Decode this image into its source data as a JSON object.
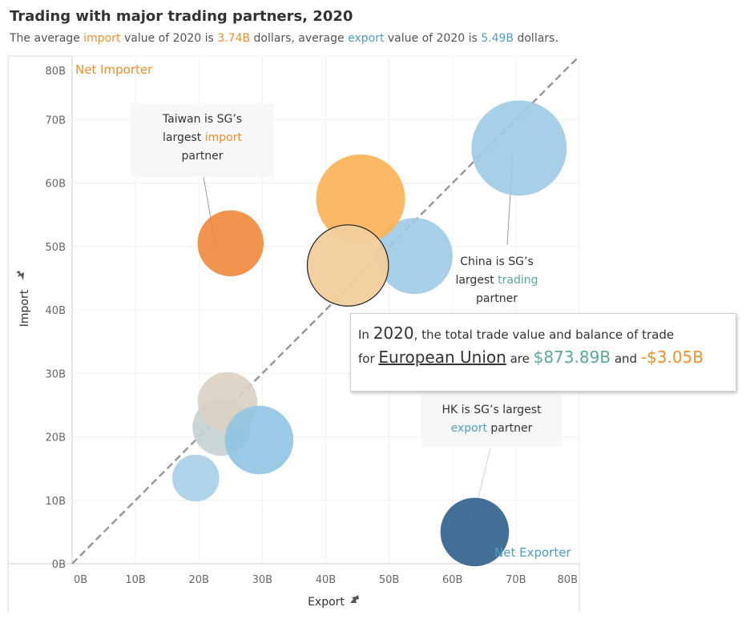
{
  "header": {
    "title": "Trading with major trading partners, 2020",
    "subtitle": {
      "p1": "The average ",
      "import_word": "import",
      "p2": " value of 2020 is ",
      "avg_import": "3.74B",
      "p3": " dollars, average ",
      "export_word": "export",
      "p4": " value of 2020 is ",
      "avg_export": "5.49B",
      "p5": " dollars."
    }
  },
  "colors": {
    "import_accent": "#f28e2b",
    "export_accent": "#4e9ec7",
    "trading_accent": "#59a89c"
  },
  "quadrant_labels": {
    "net_importer": "Net Importer",
    "net_exporter": "Net Exporter"
  },
  "annotations": {
    "taiwan": {
      "l1": "Taiwan is SG’s",
      "l2a": "largest ",
      "l2b": "import",
      "l3": "partner"
    },
    "china": {
      "l1": "China is SG’s",
      "l2a": "largest ",
      "l2b": "trading",
      "l3": "partner"
    },
    "hk": {
      "l1": "HK is SG’s largest",
      "l2a": "export",
      "l2b": " partner"
    }
  },
  "tooltip": {
    "in": "In ",
    "year": "2020",
    "t1": ", the total trade value and balance of trade",
    "for": "for ",
    "partner": "European Union",
    "are": " are ",
    "total_trade": "$873.89B",
    "and": " and ",
    "balance": "-$3.05B"
  },
  "chart_data": {
    "type": "scatter",
    "xlabel": "Export",
    "ylabel": "Import",
    "xlim": [
      0,
      80
    ],
    "ylim": [
      0,
      80
    ],
    "x_ticks": [
      "0B",
      "10B",
      "20B",
      "30B",
      "40B",
      "50B",
      "60B",
      "70B",
      "80B"
    ],
    "y_ticks": [
      "0B",
      "10B",
      "20B",
      "30B",
      "40B",
      "50B",
      "60B",
      "70B",
      "80B"
    ],
    "grid": true,
    "reference_line": "y = x",
    "points": [
      {
        "x": 70.5,
        "y": 65.5,
        "r": 7.5,
        "color": "#9ecae6"
      },
      {
        "x": 54,
        "y": 48.5,
        "r": 6,
        "color": "#9ecae6"
      },
      {
        "x": 45.5,
        "y": 57.5,
        "r": 7,
        "color": "#fbb054"
      },
      {
        "x": 43.5,
        "y": 47,
        "r": 6.4,
        "color": "#f1cd9c"
      },
      {
        "x": 25,
        "y": 50.5,
        "r": 5.2,
        "color": "#f0883a"
      },
      {
        "x": 23.5,
        "y": 21.5,
        "r": 4.5,
        "color": "#c4d0d0"
      },
      {
        "x": 24.5,
        "y": 25.5,
        "r": 4.7,
        "color": "#dbcfc2"
      },
      {
        "x": 29.5,
        "y": 19.5,
        "r": 5.4,
        "color": "#8fc4e2"
      },
      {
        "x": 19.5,
        "y": 13.5,
        "r": 3.7,
        "color": "#a6cfe8"
      },
      {
        "x": 63.5,
        "y": 5,
        "r": 5.4,
        "color": "#2f5f8c"
      }
    ]
  }
}
